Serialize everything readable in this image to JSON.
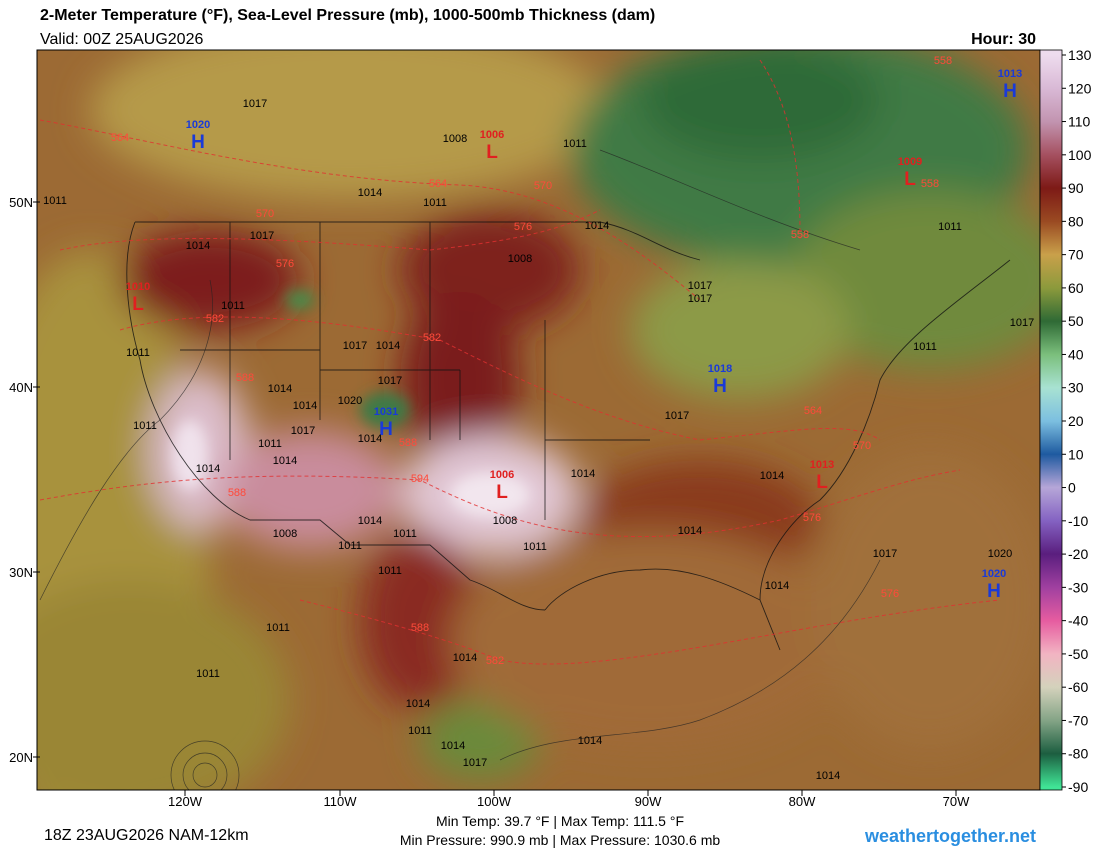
{
  "header": {
    "title": "2-Meter Temperature (°F), Sea-Level Pressure (mb), 1000-500mb Thickness (dam)",
    "valid": "Valid: 00Z 25AUG2026",
    "hour": "Hour: 30"
  },
  "map": {
    "latitude_labels": [
      "50N",
      "40N",
      "30N",
      "20N"
    ],
    "longitude_labels": [
      "120W",
      "110W",
      "100W",
      "90W",
      "80W",
      "70W"
    ],
    "pressure_centers": [
      {
        "type": "H",
        "value": 1020
      },
      {
        "type": "H",
        "value": 1013
      },
      {
        "type": "L",
        "value": 1006
      },
      {
        "type": "L",
        "value": 1010
      },
      {
        "type": "L",
        "value": 1009
      },
      {
        "type": "H",
        "value": 1018
      },
      {
        "type": "H",
        "value": 1031
      },
      {
        "type": "L",
        "value": 1006
      },
      {
        "type": "L",
        "value": 1013
      },
      {
        "type": "H",
        "value": 1020
      }
    ],
    "isobar_labels": [
      1017,
      1008,
      1011,
      1014,
      1011,
      1014,
      1017,
      1014,
      1008,
      1011,
      1011,
      1017,
      1014,
      1017,
      1017,
      1014,
      1017,
      1014,
      1017,
      1020,
      1011,
      1014,
      1014,
      1014,
      1011,
      1017,
      1014,
      1014,
      1008,
      1008,
      1011,
      1011,
      1011,
      1014,
      1011,
      1014,
      1017,
      1020,
      1014,
      1011,
      1011,
      1014,
      1014,
      1011,
      1014,
      1014,
      1017,
      1014,
      1011,
      1017,
      1011,
      1011
    ],
    "thickness_labels": [
      558,
      564,
      564,
      570,
      570,
      576,
      558,
      558,
      576,
      582,
      582,
      588,
      588,
      594,
      588,
      564,
      570,
      576,
      576,
      588,
      582
    ]
  },
  "colorbar": {
    "ticks": [
      130,
      120,
      110,
      100,
      90,
      80,
      70,
      60,
      50,
      40,
      30,
      20,
      10,
      0,
      -10,
      -20,
      -30,
      -40,
      -50,
      -60,
      -70,
      -80,
      -90
    ],
    "colors": [
      "#eedcee",
      "#d9b9d6",
      "#c294b0",
      "#a55060",
      "#7d1a16",
      "#9a4a22",
      "#c9a04a",
      "#8c9a3c",
      "#2f6a35",
      "#7bbf7c",
      "#a8e2d2",
      "#7cbfe0",
      "#1e5aa0",
      "#b6a6d8",
      "#8462c2",
      "#5a1e7e",
      "#a040a0",
      "#e65ca0",
      "#f2b4c2",
      "#d4d2bc",
      "#84a486",
      "#1c5e40",
      "#40e496"
    ]
  },
  "footer": {
    "run": "18Z 23AUG2026 NAM-12km",
    "temp_range": "Min Temp: 39.7 °F | Max Temp: 111.5 °F",
    "pressure_range": "Min Pressure: 990.9 mb | Max Pressure: 1030.6 mb",
    "site": "weathertogether.net"
  }
}
